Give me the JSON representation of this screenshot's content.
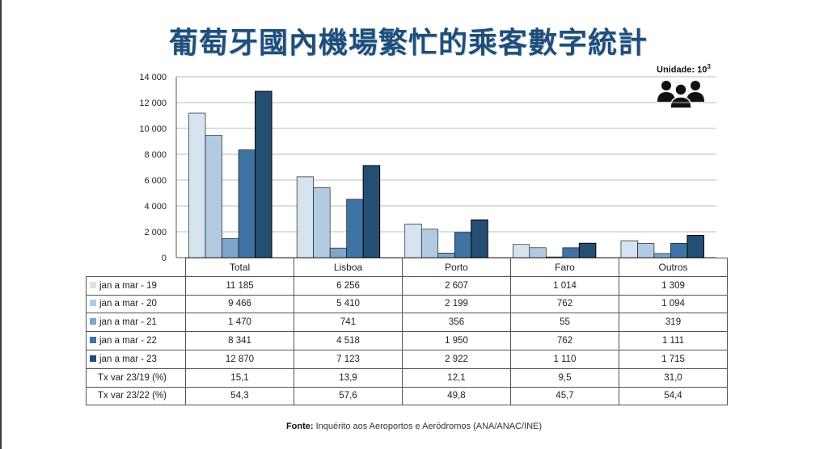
{
  "title": "葡萄牙國內機場繁忙的乘客數字統計",
  "unit_label": "Unidade: 10",
  "unit_exp": "3",
  "icon": "people-group-icon",
  "source": {
    "label": "Fonte:",
    "text": "Inquérito aos Aeroportos e Aeródromos (ANA/ANAC/INE)"
  },
  "chart_data": {
    "type": "bar",
    "categories": [
      "Total",
      "Lisboa",
      "Porto",
      "Faro",
      "Outros"
    ],
    "series": [
      {
        "name": "jan a mar - 19",
        "color": "#d6e3f0",
        "values": [
          11185,
          6256,
          2607,
          1014,
          1309
        ],
        "display": [
          "11 185",
          "6 256",
          "2 607",
          "1 014",
          "1 309"
        ]
      },
      {
        "name": "jan a mar - 20",
        "color": "#b3cbe1",
        "values": [
          9466,
          5410,
          2199,
          762,
          1094
        ],
        "display": [
          "9 466",
          "5 410",
          "2 199",
          "762",
          "1 094"
        ]
      },
      {
        "name": "jan a mar - 21",
        "color": "#7ea6c9",
        "values": [
          1470,
          741,
          356,
          55,
          319
        ],
        "display": [
          "1 470",
          "741",
          "356",
          "55",
          "319"
        ]
      },
      {
        "name": "jan a mar - 22",
        "color": "#3f73a3",
        "values": [
          8341,
          4518,
          1950,
          762,
          1111
        ],
        "display": [
          "8 341",
          "4 518",
          "1 950",
          "762",
          "1 111"
        ]
      },
      {
        "name": "jan a mar - 23",
        "color": "#254e73",
        "values": [
          12870,
          7123,
          2922,
          1110,
          1715
        ],
        "display": [
          "12 870",
          "7 123",
          "2 922",
          "1 110",
          "1 715"
        ]
      }
    ],
    "extra_rows": [
      {
        "name": "Tx var 23/19 (%)",
        "display": [
          "15,1",
          "13,9",
          "12,1",
          "9,5",
          "31,0"
        ]
      },
      {
        "name": "Tx var 23/22 (%)",
        "display": [
          "54,3",
          "57,6",
          "49,8",
          "45,7",
          "54,4"
        ]
      }
    ],
    "ylim": [
      0,
      14000
    ],
    "yticks": [
      0,
      2000,
      4000,
      6000,
      8000,
      10000,
      12000,
      14000
    ],
    "ytick_labels": [
      "0",
      "2 000",
      "4 000",
      "6 000",
      "8 000",
      "10 000",
      "12 000",
      "14 000"
    ],
    "grid": true,
    "legend": "table-rows"
  }
}
